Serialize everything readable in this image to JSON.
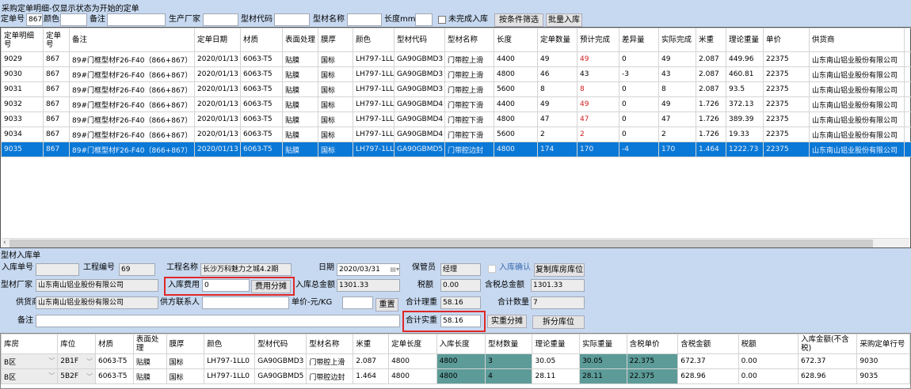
{
  "window": {
    "title": "采购定单明细-仅显示状态为开始的定单"
  },
  "filter": {
    "order_no_label": "定单号",
    "order_no": "867",
    "color_label": "颜色",
    "remark_label": "备注",
    "maker_label": "生产厂家",
    "code_label": "型材代码",
    "name_label": "型材名称",
    "length_label": "长度mm",
    "unfinished_label": "未完成入库",
    "filter_btn": "按条件筛选",
    "batch_btn": "批量入库"
  },
  "orders": {
    "columns": [
      "定单明细号",
      "定单号",
      "备注",
      "定单日期",
      "材质",
      "表面处理",
      "膜厚",
      "颜色",
      "型材代码",
      "型材名称",
      "长度",
      "定单数量",
      "预计完成",
      "差异量",
      "实际完成",
      "米重",
      "理论重量",
      "单价",
      "供货商",
      ""
    ],
    "rows": [
      [
        "9029",
        "867",
        "89#门框型材F26-F40（866+867）",
        "2020/01/13",
        "6063-T5",
        "贴膜",
        "国标",
        "LH797-1LL0",
        "GA90GBMD3",
        "门带腔上滑",
        "4400",
        "49",
        "49",
        "0",
        "49",
        "2.087",
        "449.96",
        "22375",
        "山东南山铝业股份有限公司",
        ""
      ],
      [
        "9030",
        "867",
        "89#门框型材F26-F40（866+867）",
        "2020/01/13",
        "6063-T5",
        "贴膜",
        "国标",
        "LH797-1LL0",
        "GA90GBMD3",
        "门带腔上滑",
        "4800",
        "46",
        "43",
        "-3",
        "43",
        "2.087",
        "460.81",
        "22375",
        "山东南山铝业股份有限公司",
        ""
      ],
      [
        "9031",
        "867",
        "89#门框型材F26-F40（866+867）",
        "2020/01/13",
        "6063-T5",
        "贴膜",
        "国标",
        "LH797-1LL0",
        "GA90GBMD3",
        "门带腔上滑",
        "5600",
        "8",
        "8",
        "0",
        "8",
        "2.087",
        "93.5",
        "22375",
        "山东南山铝业股份有限公司",
        ""
      ],
      [
        "9032",
        "867",
        "89#门框型材F26-F40（866+867）",
        "2020/01/13",
        "6063-T5",
        "贴膜",
        "国标",
        "LH797-1LL0",
        "GA90GBMD4",
        "门带腔下滑",
        "4400",
        "49",
        "49",
        "0",
        "49",
        "1.726",
        "372.13",
        "22375",
        "山东南山铝业股份有限公司",
        ""
      ],
      [
        "9033",
        "867",
        "89#门框型材F26-F40（866+867）",
        "2020/01/13",
        "6063-T5",
        "贴膜",
        "国标",
        "LH797-1LL0",
        "GA90GBMD4",
        "门带腔下滑",
        "4800",
        "47",
        "47",
        "0",
        "47",
        "1.726",
        "389.39",
        "22375",
        "山东南山铝业股份有限公司",
        ""
      ],
      [
        "9034",
        "867",
        "89#门框型材F26-F40（866+867）",
        "2020/01/13",
        "6063-T5",
        "贴膜",
        "国标",
        "LH797-1LL0",
        "GA90GBMD4",
        "门带腔下滑",
        "5600",
        "2",
        "2",
        "0",
        "2",
        "1.726",
        "19.33",
        "22375",
        "山东南山铝业股份有限公司",
        ""
      ],
      [
        "9035",
        "867",
        "89#门框型材F26-F40（866+867）",
        "2020/01/13",
        "6063-T5",
        "贴膜",
        "国标",
        "LH797-1LL0",
        "GA90GBMD5",
        "门带腔边封",
        "4800",
        "174",
        "170",
        "-4",
        "170",
        "1.464",
        "1222.73",
        "22375",
        "山东南山铝业股份有限公司",
        ""
      ]
    ],
    "selected_row": 6,
    "red_column": 12
  },
  "form": {
    "section_title": "型材入库单",
    "receipt_no_label": "入库单号",
    "receipt_no": "",
    "project_no_label": "工程编号",
    "project_no": "69",
    "project_name_label": "工程名称",
    "project_name": "长沙万科魅力之城4.2期",
    "date_label": "日期",
    "date": "2020/03/31",
    "keeper_label": "保管员",
    "keeper": "经理",
    "confirm_label": "入库确认",
    "copy_btn": "复制库房库位",
    "maker_label": "型材厂家",
    "maker": "山东南山铝业股份有限公司",
    "fee_label": "入库费用",
    "fee": "0",
    "fee_btn": "费用分摊",
    "total_label": "入库总金额",
    "total": "1301.33",
    "tax_label": "税额",
    "tax": "0.00",
    "total_tax_label": "含税总金额",
    "total_tax": "1301.33",
    "supplier_label": "供货商",
    "supplier": "山东南山铝业股份有限公司",
    "contact_label": "供方联系人",
    "contact": "",
    "unit_price_label": "单价-元/KG",
    "unit_price": "",
    "reset_btn": "重置",
    "theory_weight_label": "合计理重",
    "theory_weight": "58.16",
    "qty_label": "合计数量",
    "qty": "7",
    "remark_label": "备注",
    "remark": "",
    "actual_weight_label": "合计实重",
    "actual_weight": "58.16",
    "actual_btn": "实重分摊",
    "split_btn": "拆分库位"
  },
  "receipt": {
    "columns": [
      "库房",
      "库位",
      "材质",
      "表面处理",
      "膜厚",
      "颜色",
      "型材代码",
      "型材名称",
      "米重",
      "定单长度",
      "入库长度",
      "型材数量",
      "理论重量",
      "实际重量",
      "含税单价",
      "含税金额",
      "税额",
      "入库金额(不含税)",
      "采购定单行号"
    ],
    "rows": [
      [
        "B区",
        "2B1F",
        "6063-T5",
        "贴膜",
        "国标",
        "LH797-1LL0",
        "GA90GBMD3",
        "门带腔上滑",
        "2.087",
        "4800",
        "4800",
        "3",
        "30.05",
        "30.05",
        "22.375",
        "672.37",
        "0.00",
        "672.37",
        "9030"
      ],
      [
        "B区",
        "5B2F",
        "6063-T5",
        "贴膜",
        "国标",
        "LH797-1LL0",
        "GA90GBMD5",
        "门带腔边封",
        "1.464",
        "4800",
        "4800",
        "4",
        "28.11",
        "28.11",
        "22.375",
        "628.96",
        "0.00",
        "628.96",
        "9035"
      ]
    ],
    "editable_columns": [
      10,
      11,
      13,
      14
    ]
  },
  "colors": {
    "selected": "#0a78d6",
    "teal": "#5c9b98",
    "highlight_box": "#e02828",
    "background": "#c7d9f0"
  }
}
